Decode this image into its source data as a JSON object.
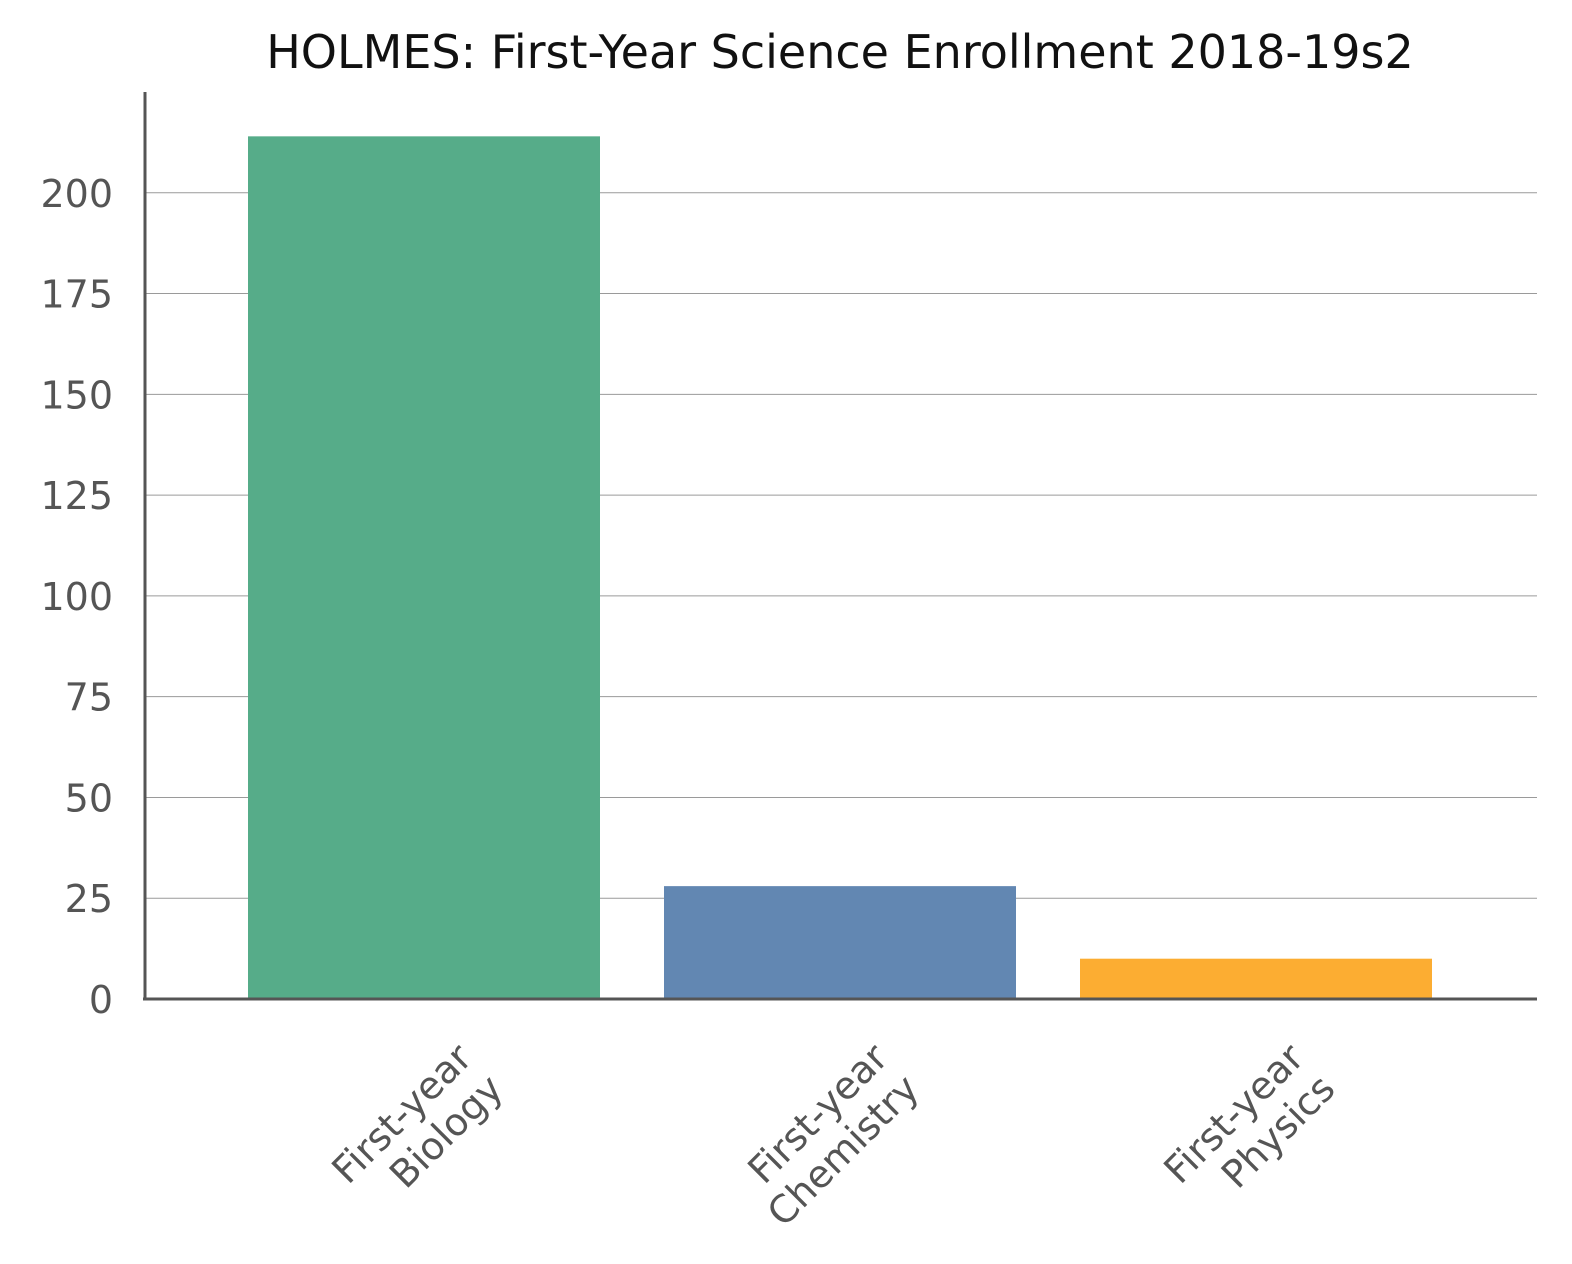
{
  "chart_data": {
    "type": "bar",
    "title": "HOLMES: First-Year Science Enrollment 2018-19s2",
    "xlabel": "",
    "ylabel": "",
    "categories": [
      [
        "First-year",
        "Biology"
      ],
      [
        "First-year",
        "Chemistry"
      ],
      [
        "First-year",
        "Physics"
      ]
    ],
    "values": [
      214,
      28,
      10
    ],
    "colors": [
      "#56ac89",
      "#6287b2",
      "#fcad32"
    ],
    "yticks": [
      0,
      25,
      50,
      75,
      100,
      125,
      150,
      175,
      200
    ],
    "ylim": [
      0,
      225
    ],
    "grid": true,
    "legend": "none"
  }
}
